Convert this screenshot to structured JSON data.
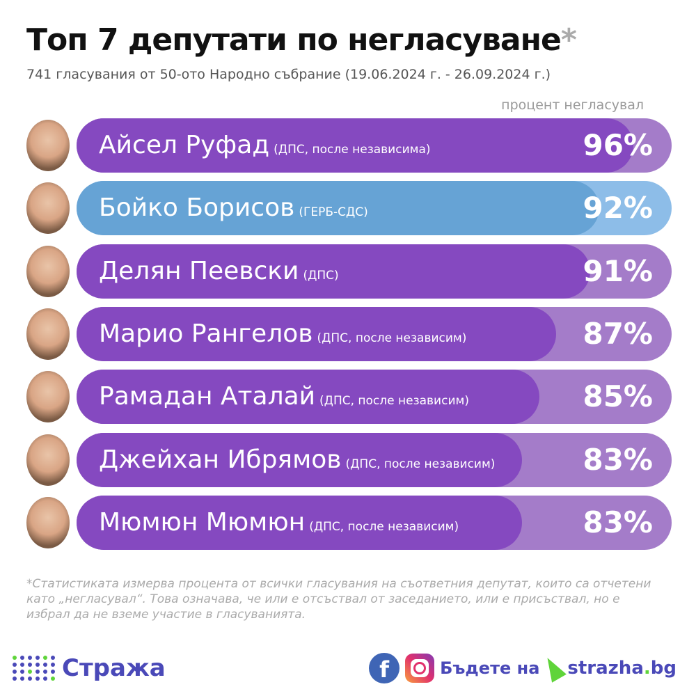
{
  "header": {
    "title": "Топ 7 депутати по негласуване",
    "title_star": "*",
    "subtitle": "741 гласувания от 50-ото Народно събрание (19.06.2024 г. - 26.09.2024 г.)",
    "column_label": "процент негласувал"
  },
  "chart_data": {
    "type": "bar",
    "categories": [
      "Айсел Руфад",
      "Бойко Борисов",
      "Делян Пеевски",
      "Марио Рангелов",
      "Рамадан Аталай",
      "Джейхан Ибрямов",
      "Мюмюн Мюмюн"
    ],
    "values": [
      96,
      92,
      91,
      87,
      85,
      83,
      83
    ],
    "unit": "%"
  },
  "rows": [
    {
      "name": "Айсел Руфад",
      "party": "(ДПС, после независима)",
      "pct": "96%",
      "value": 96,
      "color": "#8549c0"
    },
    {
      "name": "Бойко Борисов",
      "party": "(ГЕРБ-СДС)",
      "pct": "92%",
      "value": 92,
      "color": "#66a3d5"
    },
    {
      "name": "Делян Пеевски",
      "party": "(ДПС)",
      "pct": "91%",
      "value": 91,
      "color": "#8549c0"
    },
    {
      "name": "Марио Рангелов",
      "party": "(ДПС, после независим)",
      "pct": "87%",
      "value": 87,
      "color": "#8549c0"
    },
    {
      "name": "Рамадан Аталай",
      "party": "(ДПС, после независим)",
      "pct": "85%",
      "value": 85,
      "color": "#8549c0"
    },
    {
      "name": "Джейхан Ибрямов",
      "party": "(ДПС, после независим)",
      "pct": "83%",
      "value": 83,
      "color": "#8549c0"
    },
    {
      "name": "Мюмюн Мюмюн",
      "party": "(ДПС, после независим)",
      "pct": "83%",
      "value": 83,
      "color": "#8549c0"
    }
  ],
  "footnote": "*Статистиката измерва процента от всички гласувания на съответния депутат, които са отчетени като „негласувал“. Това означава, че или е отсъствал от заседанието, или е присъствал, но е избрал да не вземе участие в гласуванията.",
  "footer": {
    "brand": "Стража",
    "cta": "Бъдете на",
    "site_main": "strazha",
    "site_dot": ".",
    "site_tld": "bg",
    "icons": [
      "facebook-icon",
      "instagram-icon",
      "cursor-icon"
    ]
  }
}
